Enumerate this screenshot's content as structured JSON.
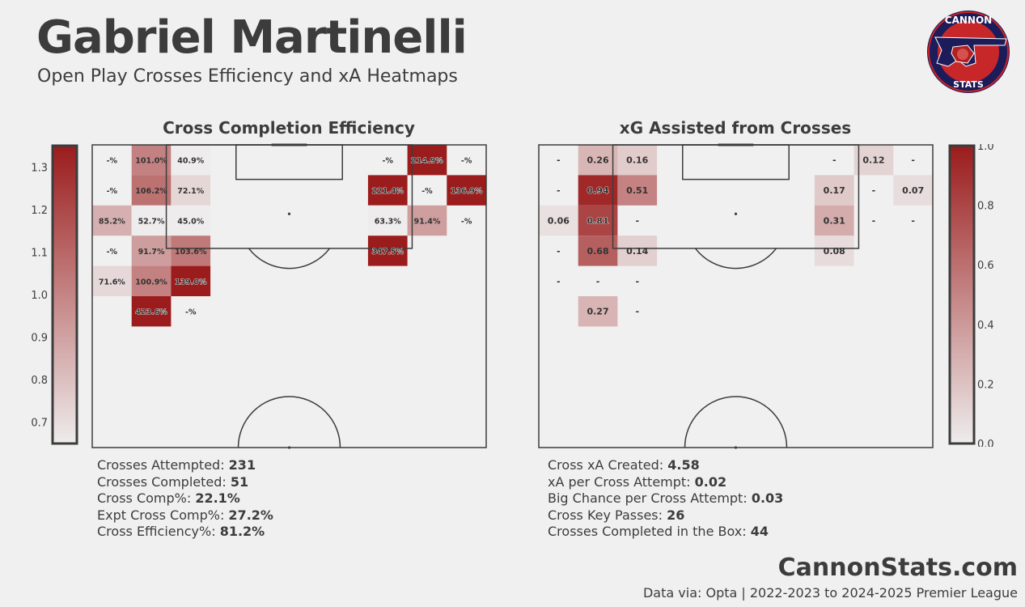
{
  "header": {
    "title": "Gabriel Martinelli",
    "subtitle": "Open Play Crosses Efficiency and xA Heatmaps"
  },
  "logo": {
    "top_text": "CANNON",
    "bottom_text": "STATS"
  },
  "colors": {
    "accent": "#9b1c1c",
    "background": "#f0f0f0",
    "text": "#3c3c3c"
  },
  "chart_data": [
    {
      "type": "heatmap",
      "title": "Cross Completion Efficiency",
      "grid_cols": 10,
      "grid_rows": 10,
      "colorbar": {
        "min": 0.65,
        "max": 1.35,
        "ticks": [
          0.7,
          0.8,
          0.9,
          1.0,
          1.1,
          1.2,
          1.3
        ]
      },
      "cells": [
        {
          "row": 0,
          "col": 0,
          "label": "-%",
          "value": null
        },
        {
          "row": 0,
          "col": 1,
          "label": "101.0%",
          "value": 1.01
        },
        {
          "row": 0,
          "col": 2,
          "label": "40.9%",
          "value": 0.409
        },
        {
          "row": 0,
          "col": 7,
          "label": "-%",
          "value": null
        },
        {
          "row": 0,
          "col": 8,
          "label": "214.9%",
          "value": 2.149
        },
        {
          "row": 0,
          "col": 9,
          "label": "-%",
          "value": null
        },
        {
          "row": 1,
          "col": 0,
          "label": "-%",
          "value": null
        },
        {
          "row": 1,
          "col": 1,
          "label": "106.2%",
          "value": 1.062
        },
        {
          "row": 1,
          "col": 2,
          "label": "72.1%",
          "value": 0.721
        },
        {
          "row": 1,
          "col": 7,
          "label": "221.4%",
          "value": 2.214
        },
        {
          "row": 1,
          "col": 8,
          "label": "-%",
          "value": null
        },
        {
          "row": 1,
          "col": 9,
          "label": "136.9%",
          "value": 1.369
        },
        {
          "row": 2,
          "col": 0,
          "label": "85.2%",
          "value": 0.852
        },
        {
          "row": 2,
          "col": 1,
          "label": "52.7%",
          "value": 0.527
        },
        {
          "row": 2,
          "col": 2,
          "label": "45.0%",
          "value": 0.45
        },
        {
          "row": 2,
          "col": 7,
          "label": "63.3%",
          "value": 0.633
        },
        {
          "row": 2,
          "col": 8,
          "label": "91.4%",
          "value": 0.914
        },
        {
          "row": 2,
          "col": 9,
          "label": "-%",
          "value": null
        },
        {
          "row": 3,
          "col": 0,
          "label": "-%",
          "value": null
        },
        {
          "row": 3,
          "col": 1,
          "label": "91.7%",
          "value": 0.917
        },
        {
          "row": 3,
          "col": 2,
          "label": "103.6%",
          "value": 1.036
        },
        {
          "row": 3,
          "col": 7,
          "label": "347.5%",
          "value": 3.475
        },
        {
          "row": 4,
          "col": 0,
          "label": "71.6%",
          "value": 0.716
        },
        {
          "row": 4,
          "col": 1,
          "label": "100.9%",
          "value": 1.009
        },
        {
          "row": 4,
          "col": 2,
          "label": "139.0%",
          "value": 1.39
        },
        {
          "row": 5,
          "col": 1,
          "label": "423.6%",
          "value": 4.236
        },
        {
          "row": 5,
          "col": 2,
          "label": "-%",
          "value": null
        }
      ],
      "stats": [
        {
          "label": "Crosses Attempted: ",
          "value": "231"
        },
        {
          "label": "Crosses Completed: ",
          "value": "51"
        },
        {
          "label": "Cross Comp%: ",
          "value": "22.1%"
        },
        {
          "label": "Expt Cross Comp%: ",
          "value": "27.2%"
        },
        {
          "label": "Cross Efficiency%: ",
          "value": "81.2%"
        }
      ]
    },
    {
      "type": "heatmap",
      "title": "xG Assisted from Crosses",
      "grid_cols": 10,
      "grid_rows": 10,
      "colorbar": {
        "min": 0.0,
        "max": 1.0,
        "ticks": [
          0.0,
          0.2,
          0.4,
          0.6,
          0.8,
          1.0
        ]
      },
      "cells": [
        {
          "row": 0,
          "col": 0,
          "label": "-",
          "value": null
        },
        {
          "row": 0,
          "col": 1,
          "label": "0.26",
          "value": 0.26
        },
        {
          "row": 0,
          "col": 2,
          "label": "0.16",
          "value": 0.16
        },
        {
          "row": 0,
          "col": 7,
          "label": "-",
          "value": null
        },
        {
          "row": 0,
          "col": 8,
          "label": "0.12",
          "value": 0.12
        },
        {
          "row": 0,
          "col": 9,
          "label": "-",
          "value": null
        },
        {
          "row": 1,
          "col": 0,
          "label": "-",
          "value": null
        },
        {
          "row": 1,
          "col": 1,
          "label": "0.94",
          "value": 0.94
        },
        {
          "row": 1,
          "col": 2,
          "label": "0.51",
          "value": 0.51
        },
        {
          "row": 1,
          "col": 7,
          "label": "0.17",
          "value": 0.17
        },
        {
          "row": 1,
          "col": 8,
          "label": "-",
          "value": null
        },
        {
          "row": 1,
          "col": 9,
          "label": "0.07",
          "value": 0.07
        },
        {
          "row": 2,
          "col": 0,
          "label": "0.06",
          "value": 0.06
        },
        {
          "row": 2,
          "col": 1,
          "label": "0.81",
          "value": 0.81
        },
        {
          "row": 2,
          "col": 2,
          "label": "-",
          "value": null
        },
        {
          "row": 2,
          "col": 7,
          "label": "0.31",
          "value": 0.31
        },
        {
          "row": 2,
          "col": 8,
          "label": "-",
          "value": null
        },
        {
          "row": 2,
          "col": 9,
          "label": "-",
          "value": null
        },
        {
          "row": 3,
          "col": 0,
          "label": "-",
          "value": null
        },
        {
          "row": 3,
          "col": 1,
          "label": "0.68",
          "value": 0.68
        },
        {
          "row": 3,
          "col": 2,
          "label": "0.14",
          "value": 0.14
        },
        {
          "row": 3,
          "col": 7,
          "label": "0.08",
          "value": 0.08
        },
        {
          "row": 4,
          "col": 0,
          "label": "-",
          "value": null
        },
        {
          "row": 4,
          "col": 1,
          "label": "-",
          "value": null
        },
        {
          "row": 4,
          "col": 2,
          "label": "-",
          "value": null
        },
        {
          "row": 5,
          "col": 1,
          "label": "0.27",
          "value": 0.27
        },
        {
          "row": 5,
          "col": 2,
          "label": "-",
          "value": null
        }
      ],
      "stats": [
        {
          "label": "Cross xA Created: ",
          "value": "4.58"
        },
        {
          "label": "xA per Cross Attempt: ",
          "value": "0.02"
        },
        {
          "label": "Big Chance per Cross Attempt: ",
          "value": "0.03"
        },
        {
          "label": "Cross Key Passes: ",
          "value": "26"
        },
        {
          "label": "Crosses Completed in the Box: ",
          "value": "44"
        }
      ]
    }
  ],
  "footer": {
    "brand": "CannonStats.com",
    "source": "Data via: Opta | 2022-2023 to 2024-2025 Premier League"
  }
}
